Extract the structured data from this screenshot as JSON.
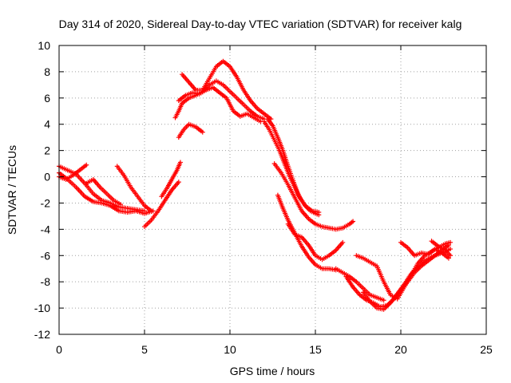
{
  "chart_data": {
    "type": "scatter",
    "title": "Day 314 of 2020, Sidereal Day-to-day VTEC variation (SDTVAR) for receiver kalg",
    "xlabel": "GPS time / hours",
    "ylabel": "SDTVAR / TECUs",
    "xlim": [
      0,
      25
    ],
    "ylim": [
      -12,
      10
    ],
    "xticks": [
      0,
      5,
      10,
      15,
      20,
      25
    ],
    "yticks": [
      -12,
      -10,
      -8,
      -6,
      -4,
      -2,
      0,
      2,
      4,
      6,
      8,
      10
    ],
    "grid": true,
    "marker": "plus",
    "color": "#ff0000",
    "series": [
      {
        "name": "s1",
        "points": [
          [
            0.0,
            0.8
          ],
          [
            0.5,
            0.5
          ],
          [
            1.0,
            0.2
          ],
          [
            1.5,
            -0.5
          ],
          [
            2.0,
            -1.3
          ],
          [
            2.5,
            -1.8
          ],
          [
            3.0,
            -2.0
          ],
          [
            3.5,
            -2.3
          ],
          [
            4.0,
            -2.4
          ],
          [
            4.5,
            -2.5
          ],
          [
            5.0,
            -2.6
          ]
        ]
      },
      {
        "name": "s2",
        "points": [
          [
            0.0,
            0.3
          ],
          [
            0.5,
            -0.2
          ],
          [
            1.0,
            -0.8
          ],
          [
            1.5,
            -1.5
          ],
          [
            2.0,
            -1.9
          ],
          [
            2.5,
            -2.0
          ],
          [
            3.0,
            -2.2
          ],
          [
            3.5,
            -2.6
          ],
          [
            4.0,
            -2.7
          ],
          [
            4.5,
            -2.6
          ],
          [
            5.0,
            -2.8
          ],
          [
            5.5,
            -2.6
          ]
        ]
      },
      {
        "name": "s3",
        "points": [
          [
            0.0,
            0.0
          ],
          [
            0.4,
            -0.2
          ],
          [
            0.8,
            0.1
          ],
          [
            1.2,
            0.5
          ],
          [
            1.6,
            0.9
          ]
        ]
      },
      {
        "name": "s4",
        "points": [
          [
            1.6,
            -0.5
          ],
          [
            2.0,
            -0.2
          ],
          [
            2.4,
            -0.8
          ],
          [
            2.8,
            -1.3
          ],
          [
            3.2,
            -1.8
          ],
          [
            3.6,
            -2.1
          ]
        ]
      },
      {
        "name": "s5",
        "points": [
          [
            3.4,
            0.8
          ],
          [
            3.8,
            0.1
          ],
          [
            4.2,
            -0.8
          ],
          [
            4.6,
            -1.5
          ],
          [
            5.0,
            -2.2
          ],
          [
            5.4,
            -2.6
          ]
        ]
      },
      {
        "name": "s6",
        "points": [
          [
            5.0,
            -3.8
          ],
          [
            5.4,
            -3.3
          ],
          [
            5.8,
            -2.6
          ],
          [
            6.2,
            -1.8
          ],
          [
            6.6,
            -1.0
          ],
          [
            7.0,
            -0.4
          ]
        ]
      },
      {
        "name": "s7",
        "points": [
          [
            6.0,
            -1.5
          ],
          [
            6.3,
            -0.9
          ],
          [
            6.6,
            -0.2
          ],
          [
            6.9,
            0.5
          ],
          [
            7.1,
            1.1
          ]
        ]
      },
      {
        "name": "s8",
        "points": [
          [
            6.8,
            4.5
          ],
          [
            7.0,
            5.0
          ],
          [
            7.2,
            5.6
          ],
          [
            7.6,
            6.0
          ],
          [
            8.0,
            6.2
          ],
          [
            8.4,
            6.5
          ],
          [
            8.8,
            7.0
          ],
          [
            9.2,
            7.3
          ],
          [
            9.6,
            7.0
          ],
          [
            10.0,
            6.5
          ],
          [
            10.4,
            6.0
          ],
          [
            10.8,
            5.5
          ],
          [
            11.2,
            5.0
          ],
          [
            11.6,
            4.6
          ],
          [
            12.0,
            4.4
          ]
        ]
      },
      {
        "name": "s9",
        "points": [
          [
            7.2,
            7.8
          ],
          [
            7.6,
            7.2
          ],
          [
            8.0,
            6.6
          ],
          [
            8.4,
            6.6
          ],
          [
            8.8,
            7.5
          ],
          [
            9.2,
            8.4
          ],
          [
            9.6,
            8.8
          ],
          [
            10.0,
            8.4
          ],
          [
            10.4,
            7.6
          ],
          [
            10.8,
            6.6
          ],
          [
            11.2,
            5.8
          ],
          [
            11.6,
            5.2
          ],
          [
            12.0,
            4.8
          ],
          [
            12.4,
            4.4
          ]
        ]
      },
      {
        "name": "s10",
        "points": [
          [
            7.0,
            5.8
          ],
          [
            7.4,
            6.2
          ],
          [
            7.8,
            6.4
          ],
          [
            8.2,
            6.3
          ],
          [
            8.6,
            6.6
          ],
          [
            9.0,
            6.8
          ],
          [
            9.4,
            6.4
          ],
          [
            9.8,
            6.0
          ],
          [
            10.2,
            5.0
          ],
          [
            10.6,
            4.6
          ],
          [
            11.0,
            4.8
          ],
          [
            11.4,
            4.5
          ],
          [
            11.8,
            4.2
          ]
        ]
      },
      {
        "name": "s11",
        "points": [
          [
            7.0,
            3.0
          ],
          [
            7.3,
            3.6
          ],
          [
            7.6,
            4.0
          ],
          [
            8.0,
            3.8
          ],
          [
            8.4,
            3.4
          ]
        ]
      },
      {
        "name": "s12",
        "points": [
          [
            12.0,
            4.2
          ],
          [
            12.3,
            3.6
          ],
          [
            12.6,
            2.8
          ],
          [
            12.9,
            2.0
          ],
          [
            13.2,
            1.0
          ],
          [
            13.5,
            0.0
          ],
          [
            13.8,
            -0.8
          ],
          [
            14.1,
            -1.6
          ],
          [
            14.4,
            -2.2
          ],
          [
            14.7,
            -2.6
          ],
          [
            15.0,
            -2.8
          ],
          [
            15.2,
            -2.9
          ]
        ]
      },
      {
        "name": "s13",
        "points": [
          [
            12.2,
            4.4
          ],
          [
            12.5,
            3.9
          ],
          [
            12.8,
            3.0
          ],
          [
            13.1,
            2.0
          ],
          [
            13.4,
            0.8
          ],
          [
            13.7,
            -0.3
          ],
          [
            14.0,
            -1.4
          ],
          [
            14.4,
            -2.2
          ],
          [
            14.8,
            -2.6
          ],
          [
            15.2,
            -2.7
          ]
        ]
      },
      {
        "name": "s14",
        "points": [
          [
            12.6,
            1.0
          ],
          [
            13.0,
            0.3
          ],
          [
            13.4,
            -0.6
          ],
          [
            13.8,
            -1.6
          ],
          [
            14.2,
            -2.6
          ],
          [
            14.6,
            -3.2
          ],
          [
            15.0,
            -3.6
          ],
          [
            15.4,
            -3.8
          ],
          [
            15.8,
            -3.9
          ],
          [
            16.2,
            -4.0
          ],
          [
            16.6,
            -3.9
          ],
          [
            17.0,
            -3.6
          ],
          [
            17.2,
            -3.4
          ]
        ]
      },
      {
        "name": "s15",
        "points": [
          [
            12.8,
            -1.4
          ],
          [
            13.1,
            -2.4
          ],
          [
            13.4,
            -3.3
          ],
          [
            13.8,
            -4.3
          ],
          [
            14.2,
            -5.3
          ],
          [
            14.6,
            -6.1
          ],
          [
            15.0,
            -6.7
          ],
          [
            15.4,
            -7.0
          ],
          [
            15.8,
            -7.0
          ],
          [
            16.2,
            -7.1
          ]
        ]
      },
      {
        "name": "s16",
        "points": [
          [
            13.4,
            -3.6
          ],
          [
            13.8,
            -4.4
          ],
          [
            14.2,
            -4.6
          ],
          [
            14.6,
            -5.2
          ],
          [
            15.0,
            -6.0
          ],
          [
            15.4,
            -6.3
          ],
          [
            15.8,
            -6.0
          ],
          [
            16.2,
            -5.6
          ],
          [
            16.6,
            -5.0
          ]
        ]
      },
      {
        "name": "s17",
        "points": [
          [
            16.2,
            -7.0
          ],
          [
            16.6,
            -7.3
          ],
          [
            17.0,
            -7.6
          ],
          [
            17.4,
            -8.0
          ],
          [
            17.8,
            -8.5
          ],
          [
            18.2,
            -9.0
          ],
          [
            18.6,
            -9.2
          ],
          [
            19.0,
            -9.4
          ]
        ]
      },
      {
        "name": "s18",
        "points": [
          [
            16.8,
            -7.6
          ],
          [
            17.2,
            -8.4
          ],
          [
            17.6,
            -9.0
          ],
          [
            18.0,
            -9.4
          ],
          [
            18.4,
            -9.6
          ],
          [
            18.8,
            -9.9
          ],
          [
            19.2,
            -9.8
          ],
          [
            19.6,
            -9.3
          ],
          [
            20.0,
            -8.6
          ],
          [
            20.4,
            -8.0
          ],
          [
            20.8,
            -7.3
          ],
          [
            21.2,
            -6.8
          ],
          [
            21.6,
            -6.4
          ],
          [
            22.0,
            -6.0
          ],
          [
            22.4,
            -5.6
          ],
          [
            22.8,
            -5.2
          ]
        ]
      },
      {
        "name": "s19",
        "points": [
          [
            17.8,
            -8.8
          ],
          [
            18.2,
            -9.5
          ],
          [
            18.6,
            -10.0
          ],
          [
            19.0,
            -10.1
          ],
          [
            19.4,
            -9.6
          ],
          [
            19.8,
            -8.9
          ],
          [
            20.2,
            -8.2
          ],
          [
            20.6,
            -7.4
          ],
          [
            21.0,
            -6.9
          ],
          [
            21.4,
            -6.4
          ],
          [
            21.8,
            -6.1
          ],
          [
            22.2,
            -5.9
          ],
          [
            22.6,
            -5.7
          ],
          [
            22.9,
            -5.5
          ]
        ]
      },
      {
        "name": "s20",
        "points": [
          [
            17.4,
            -6.0
          ],
          [
            17.8,
            -6.2
          ],
          [
            18.2,
            -6.5
          ],
          [
            18.6,
            -6.8
          ],
          [
            19.0,
            -8.0
          ],
          [
            19.4,
            -9.0
          ],
          [
            19.8,
            -9.3
          ],
          [
            20.2,
            -8.4
          ],
          [
            20.6,
            -7.5
          ],
          [
            21.0,
            -6.6
          ],
          [
            21.4,
            -6.0
          ],
          [
            21.8,
            -5.7
          ],
          [
            22.2,
            -5.4
          ],
          [
            22.6,
            -5.1
          ],
          [
            22.9,
            -5.0
          ]
        ]
      },
      {
        "name": "s21",
        "points": [
          [
            20.0,
            -5.0
          ],
          [
            20.4,
            -5.4
          ],
          [
            20.8,
            -6.0
          ],
          [
            21.2,
            -5.8
          ],
          [
            21.6,
            -5.9
          ],
          [
            22.0,
            -5.5
          ],
          [
            22.4,
            -5.8
          ],
          [
            22.8,
            -6.2
          ]
        ]
      },
      {
        "name": "s22",
        "points": [
          [
            21.8,
            -4.9
          ],
          [
            22.2,
            -5.3
          ],
          [
            22.6,
            -5.6
          ],
          [
            22.9,
            -6.0
          ]
        ]
      }
    ]
  }
}
